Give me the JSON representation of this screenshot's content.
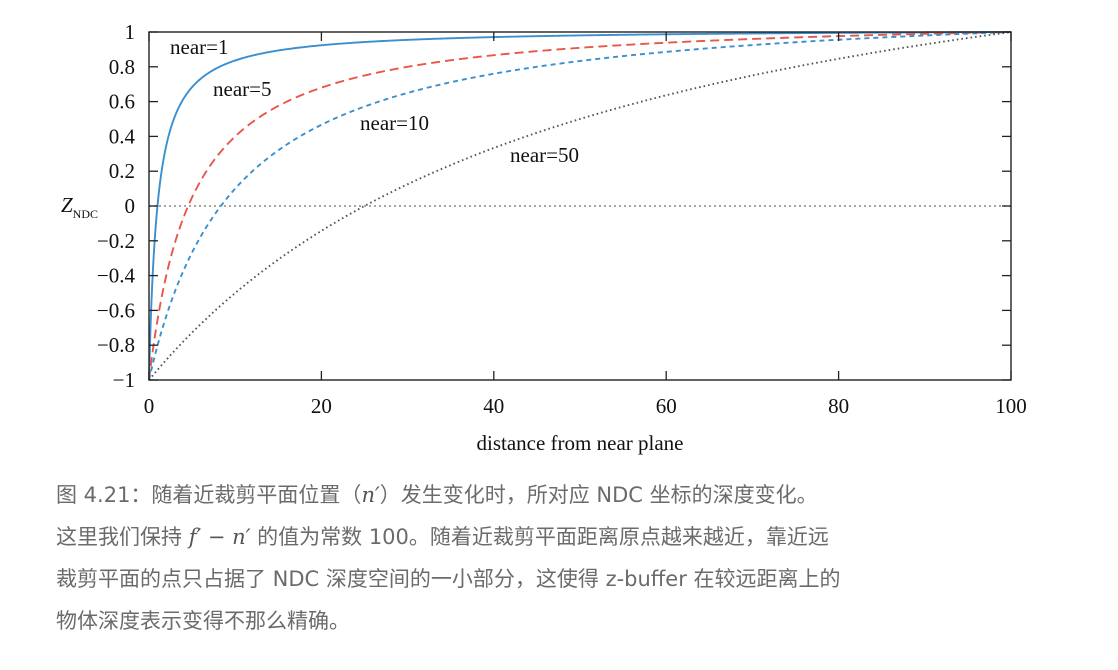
{
  "chart_data": {
    "type": "line",
    "title": "",
    "xlabel": "distance from near plane",
    "ylabel_main": "Z",
    "ylabel_sub": "NDC",
    "xlim": [
      0,
      100
    ],
    "ylim": [
      -1,
      1
    ],
    "xticks": [
      0,
      20,
      40,
      60,
      80,
      100
    ],
    "xtick_labels": [
      "0",
      "20",
      "40",
      "60",
      "80",
      "100"
    ],
    "yticks": [
      -1,
      -0.8,
      -0.6,
      -0.4,
      -0.2,
      0,
      0.2,
      0.4,
      0.6,
      0.8,
      1
    ],
    "ytick_labels": [
      "−1",
      "−0.8",
      "−0.6",
      "−0.4",
      "−0.2",
      "0",
      "0.2",
      "0.4",
      "0.6",
      "0.8",
      "1"
    ],
    "grid": false,
    "reference_line": {
      "y": 0,
      "style": "dotted",
      "color": "#888888"
    },
    "series": [
      {
        "name": "near=1",
        "near": 1,
        "color": "#3b8fce",
        "dash": "solid",
        "x": [
          0,
          1,
          2,
          5,
          10,
          20,
          40,
          60,
          80,
          100
        ],
        "y": [
          -1,
          0.0,
          0.34,
          0.68,
          0.84,
          0.92,
          0.97,
          0.98,
          0.99,
          1
        ]
      },
      {
        "name": "near=5",
        "near": 5,
        "color": "#e8574a",
        "dash": "dashed",
        "x": [
          0,
          5,
          10,
          20,
          40,
          60,
          80,
          100
        ],
        "y": [
          -1,
          0.05,
          0.37,
          0.62,
          0.81,
          0.89,
          0.95,
          1
        ]
      },
      {
        "name": "near=10",
        "near": 10,
        "color": "#3b8fce",
        "dash": "short-dashed",
        "x": [
          0,
          10,
          20,
          40,
          60,
          80,
          100
        ],
        "y": [
          -1,
          0.09,
          0.45,
          0.73,
          0.86,
          0.94,
          1
        ]
      },
      {
        "name": "near=50",
        "near": 50,
        "color": "#555555",
        "dash": "dotted",
        "x": [
          0,
          25,
          50,
          75,
          100
        ],
        "y": [
          -1,
          0.02,
          0.51,
          0.81,
          1
        ]
      }
    ]
  },
  "caption": {
    "line1_a": "图 4.21：随着近裁剪平面位置（",
    "line1_math": "n′",
    "line1_b": "）发生变化时，所对应 NDC 坐标的深度变化。",
    "line2_a": "这里我们保持 ",
    "line2_math": "f′ − n′",
    "line2_b": " 的值为常数 100。随着近裁剪平面距离原点越来越近，靠近远",
    "line3": "裁剪平面的点只占据了 NDC 深度空间的一小部分，这使得 z-buffer 在较远距离上的",
    "line4": "物体深度表示变得不那么精确。"
  }
}
